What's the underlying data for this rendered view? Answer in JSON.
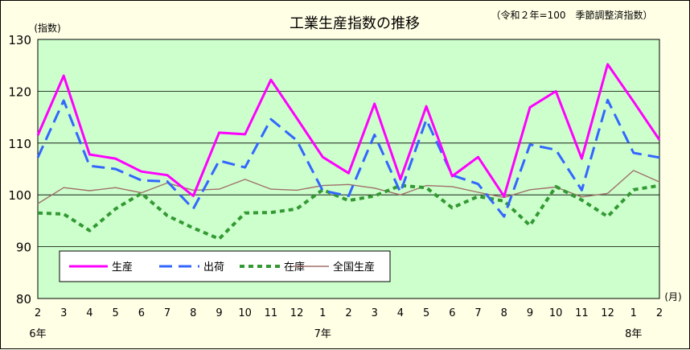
{
  "chart_data": {
    "type": "line",
    "title": "工業生産指数の推移",
    "note": "（令和２年=100　季節調整済指数）",
    "ylabel": "(指数)",
    "xunit": "(月)",
    "ylim": [
      80,
      130
    ],
    "yticks": [
      80,
      90,
      100,
      110,
      120,
      130
    ],
    "grid": true,
    "legend_position": "bottom-left",
    "categories": [
      "2",
      "3",
      "4",
      "5",
      "6",
      "7",
      "8",
      "9",
      "10",
      "11",
      "12",
      "1",
      "2",
      "3",
      "4",
      "5",
      "6",
      "7",
      "8",
      "9",
      "10",
      "11",
      "12",
      "1",
      "2"
    ],
    "year_labels": [
      {
        "label": "6年",
        "index": 0
      },
      {
        "label": "7年",
        "index": 11
      },
      {
        "label": "8年",
        "index": 23
      }
    ],
    "series": [
      {
        "name": "生産",
        "color": "#ff00ff",
        "style": "solid",
        "values": [
          111.5,
          123.0,
          107.8,
          107.0,
          104.5,
          103.8,
          99.8,
          112.0,
          111.7,
          122.2,
          114.8,
          107.3,
          104.2,
          117.6,
          103.0,
          117.1,
          103.6,
          107.3,
          99.7,
          116.9,
          120.0,
          107.0,
          125.2,
          118.0,
          110.6
        ]
      },
      {
        "name": "出荷",
        "color": "#3366ff",
        "style": "dashed",
        "values": [
          107.2,
          118.2,
          105.6,
          105.0,
          102.8,
          102.6,
          97.3,
          106.6,
          105.3,
          114.6,
          110.5,
          100.8,
          99.8,
          111.6,
          100.5,
          114.5,
          103.8,
          102.1,
          95.8,
          109.7,
          108.7,
          100.9,
          118.3,
          108.1,
          107.2
        ]
      },
      {
        "name": "在庫",
        "color": "#339933",
        "style": "dotted",
        "values": [
          96.5,
          96.3,
          93.1,
          97.3,
          100.3,
          96.0,
          93.6,
          91.5,
          96.5,
          96.6,
          97.3,
          101.0,
          98.9,
          99.8,
          101.8,
          101.4,
          97.5,
          99.7,
          98.8,
          94.1,
          101.6,
          99.0,
          95.8,
          101.0,
          101.8
        ]
      },
      {
        "name": "全国生産",
        "color": "#a0706a",
        "style": "thin",
        "values": [
          98.3,
          101.4,
          100.8,
          101.4,
          100.4,
          102.3,
          100.9,
          101.1,
          103.0,
          101.1,
          100.9,
          101.8,
          102.0,
          101.3,
          100.0,
          101.8,
          101.6,
          100.5,
          99.5,
          101.0,
          101.5,
          99.6,
          100.3,
          104.7,
          102.5
        ]
      }
    ]
  }
}
